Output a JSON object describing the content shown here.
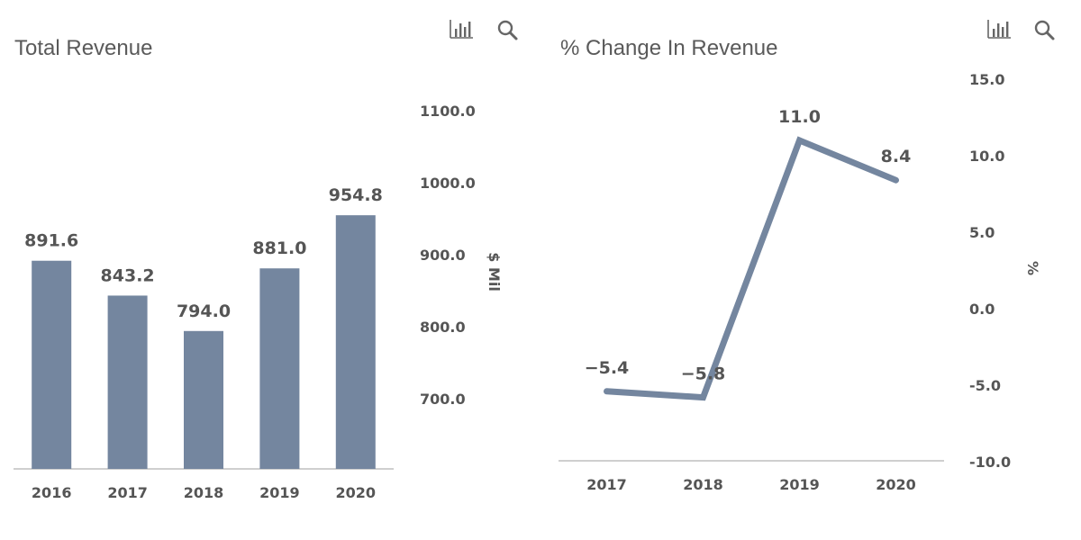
{
  "colors": {
    "bar": "#74869f",
    "line": "#74869f",
    "axis": "#bfbfbf",
    "text": "#555555",
    "title": "#5a5a5a"
  },
  "toolbar": {
    "icons": [
      "bar-chart-icon",
      "magnifier-icon"
    ]
  },
  "chart_data": [
    {
      "type": "bar",
      "title": "Total Revenue",
      "categories": [
        "2016",
        "2017",
        "2018",
        "2019",
        "2020"
      ],
      "values": [
        891.6,
        843.2,
        794.0,
        881.0,
        954.8
      ],
      "value_labels": [
        "891.6",
        "843.2",
        "794.0",
        "881.0",
        "954.8"
      ],
      "ylabel": "$ Mil",
      "yticks": [
        700.0,
        800.0,
        900.0,
        1000.0,
        1100.0
      ],
      "ytick_labels": [
        "700.0",
        "800.0",
        "900.0",
        "1000.0",
        "1100.0"
      ],
      "ylim": [
        600,
        1100
      ],
      "y_axis_side": "right",
      "grid": false
    },
    {
      "type": "line",
      "title": "% Change In Revenue",
      "categories": [
        "2017",
        "2018",
        "2019",
        "2020"
      ],
      "values": [
        -5.4,
        -5.8,
        11.0,
        8.4
      ],
      "value_labels": [
        "−5.4",
        "−5.8",
        "11.0",
        "8.4"
      ],
      "ylabel": "%",
      "yticks": [
        -10.0,
        -5.0,
        0.0,
        5.0,
        10.0,
        15.0
      ],
      "ytick_labels": [
        "-10.0",
        "-5.0",
        "0.0",
        "5.0",
        "10.0",
        "15.0"
      ],
      "ylim": [
        -10,
        15
      ],
      "y_axis_side": "right",
      "grid": false
    }
  ]
}
